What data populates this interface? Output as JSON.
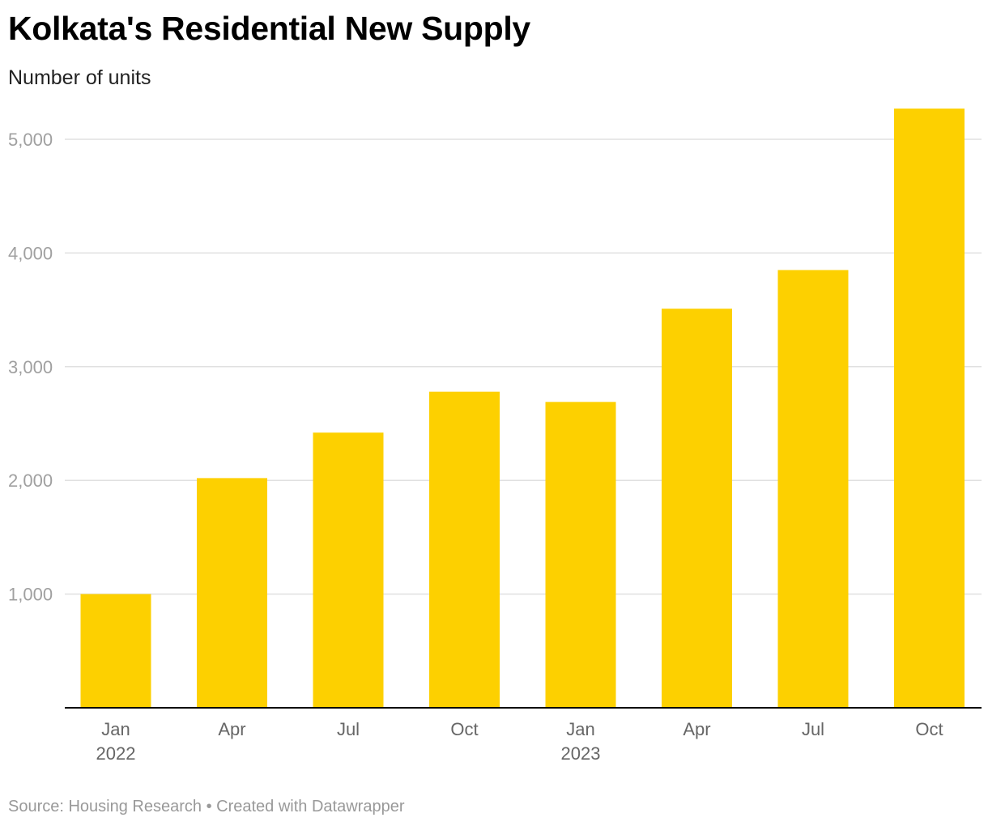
{
  "title": "Kolkata's Residential New Supply",
  "subtitle": "Number of units",
  "footer": {
    "source": "Source: Housing Research",
    "separator": " • ",
    "credit": "Created with Datawrapper"
  },
  "colors": {
    "bar": "#FDD000",
    "grid": "#e0e0e0",
    "axis": "#000000"
  },
  "chart_data": {
    "type": "bar",
    "title": "Kolkata's Residential New Supply",
    "ylabel": "Number of units",
    "xlabel": "",
    "ylim": [
      0,
      5000
    ],
    "yticks": [
      1000,
      2000,
      3000,
      4000,
      5000
    ],
    "ytick_labels": [
      "1,000",
      "2,000",
      "3,000",
      "4,000",
      "5,000"
    ],
    "categories": [
      "Jan 2022",
      "Apr",
      "Jul",
      "Oct",
      "Jan 2023",
      "Apr",
      "Jul",
      "Oct"
    ],
    "x_tick_labels": [
      {
        "line1": "Jan",
        "line2": "2022"
      },
      {
        "line1": "Apr",
        "line2": ""
      },
      {
        "line1": "Jul",
        "line2": ""
      },
      {
        "line1": "Oct",
        "line2": ""
      },
      {
        "line1": "Jan",
        "line2": "2023"
      },
      {
        "line1": "Apr",
        "line2": ""
      },
      {
        "line1": "Jul",
        "line2": ""
      },
      {
        "line1": "Oct",
        "line2": ""
      }
    ],
    "values": [
      1000,
      2020,
      2420,
      2780,
      2690,
      3510,
      3850,
      5270
    ],
    "grid": true
  }
}
